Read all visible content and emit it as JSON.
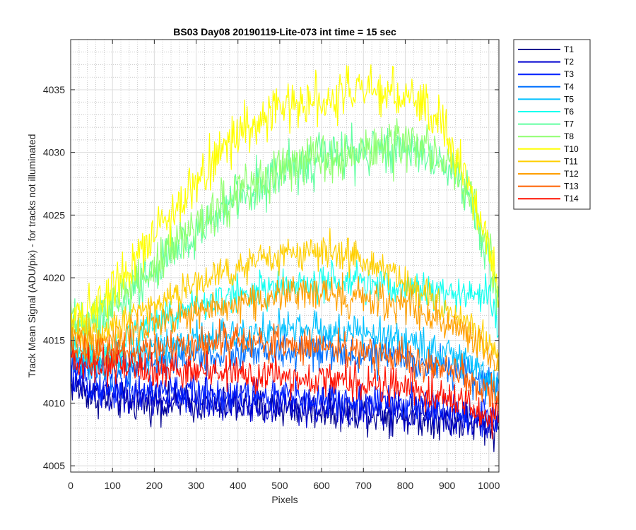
{
  "chart_data": {
    "type": "line",
    "title": "BS03 Day08 20190119-Lite-073 int time = 15 sec",
    "xlabel": "Pixels",
    "ylabel": "Track Mean Signal (ADU/pix) - for tracks not illuminated",
    "xlim": [
      0,
      1024
    ],
    "ylim": [
      4004.5,
      4039
    ],
    "x_ticks": [
      "0",
      "100",
      "200",
      "300",
      "400",
      "500",
      "600",
      "700",
      "800",
      "900",
      "1000"
    ],
    "y_ticks": [
      "4005",
      "4010",
      "4015",
      "4020",
      "4025",
      "4030",
      "4035"
    ],
    "grid": "major and minor",
    "legend_position": "outside right",
    "x": [
      0,
      50,
      100,
      150,
      200,
      250,
      300,
      350,
      400,
      450,
      500,
      550,
      600,
      650,
      700,
      750,
      800,
      850,
      900,
      950,
      1000,
      1024
    ],
    "series": [
      {
        "name": "T1",
        "color": "#00008f",
        "values": [
          4011.5,
          4010.5,
          4010.2,
          4010.0,
          4010.0,
          4010.0,
          4009.9,
          4009.8,
          4009.8,
          4009.7,
          4009.6,
          4009.5,
          4009.4,
          4009.3,
          4009.2,
          4009.1,
          4009.0,
          4008.8,
          4008.6,
          4008.4,
          4008.0,
          4008.0
        ]
      },
      {
        "name": "T2",
        "color": "#0000cf",
        "values": [
          4012.0,
          4010.8,
          4010.5,
          4010.3,
          4010.3,
          4010.2,
          4010.1,
          4010.0,
          4010.0,
          4009.9,
          4009.8,
          4009.7,
          4009.6,
          4009.5,
          4009.4,
          4009.3,
          4009.2,
          4009.0,
          4008.8,
          4008.6,
          4008.2,
          4008.3
        ]
      },
      {
        "name": "T3",
        "color": "#0020ff",
        "values": [
          4012.5,
          4011.5,
          4011.2,
          4011.0,
          4011.0,
          4010.9,
          4010.8,
          4010.7,
          4010.7,
          4010.6,
          4010.5,
          4010.4,
          4010.3,
          4010.2,
          4010.1,
          4010.0,
          4009.9,
          4009.7,
          4009.5,
          4009.3,
          4009.0,
          4009.0
        ]
      },
      {
        "name": "T4",
        "color": "#0070ff",
        "values": [
          4013.5,
          4012.5,
          4012.5,
          4013.0,
          4013.2,
          4013.5,
          4013.7,
          4013.8,
          4013.9,
          4014.0,
          4014.0,
          4014.0,
          4014.0,
          4013.9,
          4013.8,
          4013.7,
          4013.5,
          4013.2,
          4012.8,
          4012.3,
          4011.5,
          4011.0
        ]
      },
      {
        "name": "T5",
        "color": "#00c0ff",
        "values": [
          4014.0,
          4013.0,
          4013.2,
          4013.8,
          4014.3,
          4014.8,
          4015.2,
          4015.5,
          4015.7,
          4015.8,
          4015.9,
          4015.9,
          4015.8,
          4015.7,
          4015.5,
          4015.3,
          4015.0,
          4014.6,
          4014.0,
          4013.2,
          4012.0,
          4011.0
        ]
      },
      {
        "name": "T6",
        "color": "#10ffef",
        "values": [
          4014.5,
          4013.8,
          4014.5,
          4015.5,
          4016.5,
          4017.2,
          4017.8,
          4018.3,
          4018.7,
          4019.0,
          4019.2,
          4019.4,
          4019.5,
          4019.5,
          4019.5,
          4019.3,
          4019.2,
          4019.0,
          4018.8,
          4018.5,
          4018.8,
          4015.5
        ]
      },
      {
        "name": "T7",
        "color": "#60ffa0",
        "values": [
          4016.0,
          4016.0,
          4017.5,
          4019.0,
          4020.5,
          4022.0,
          4023.5,
          4025.0,
          4026.5,
          4027.5,
          4028.3,
          4029.0,
          4029.5,
          4029.8,
          4030.0,
          4030.2,
          4030.3,
          4030.0,
          4029.0,
          4026.5,
          4021.5,
          4018.5
        ]
      },
      {
        "name": "T8",
        "color": "#90ff70",
        "values": [
          4016.5,
          4016.5,
          4018.0,
          4019.5,
          4021.0,
          4022.5,
          4024.0,
          4025.5,
          4026.8,
          4027.8,
          4028.6,
          4029.2,
          4029.7,
          4030.0,
          4030.2,
          4030.4,
          4030.5,
          4030.2,
          4029.3,
          4027.0,
          4022.0,
          4019.0
        ]
      },
      {
        "name": "T10",
        "color": "#ffff00",
        "values": [
          4017.0,
          4017.5,
          4019.5,
          4021.5,
          4023.5,
          4025.5,
          4027.5,
          4029.5,
          4031.5,
          4032.5,
          4033.5,
          4034.0,
          4034.5,
          4034.8,
          4035.0,
          4034.8,
          4034.5,
          4033.5,
          4031.5,
          4028.0,
          4022.5,
          4019.0
        ]
      },
      {
        "name": "T11",
        "color": "#ffcf00",
        "values": [
          4016.0,
          4015.5,
          4016.3,
          4017.2,
          4018.0,
          4018.8,
          4019.5,
          4020.2,
          4020.8,
          4021.3,
          4021.7,
          4022.0,
          4022.2,
          4022.0,
          4021.5,
          4020.8,
          4019.8,
          4018.7,
          4017.5,
          4016.2,
          4014.5,
          4013.5
        ]
      },
      {
        "name": "T12",
        "color": "#ff9f00",
        "values": [
          4015.5,
          4014.8,
          4015.3,
          4015.8,
          4016.3,
          4016.8,
          4017.2,
          4017.6,
          4018.0,
          4018.3,
          4018.5,
          4018.7,
          4018.8,
          4018.7,
          4018.5,
          4018.2,
          4017.8,
          4017.2,
          4016.5,
          4015.5,
          4014.0,
          4013.0
        ]
      },
      {
        "name": "T13",
        "color": "#ff6000",
        "values": [
          4014.5,
          4013.8,
          4014.0,
          4014.2,
          4014.4,
          4014.6,
          4014.7,
          4014.8,
          4014.8,
          4014.8,
          4014.7,
          4014.6,
          4014.5,
          4014.3,
          4014.1,
          4013.9,
          4013.6,
          4013.2,
          4012.7,
          4012.0,
          4010.8,
          4010.0
        ]
      },
      {
        "name": "T14",
        "color": "#ff1000",
        "values": [
          4013.5,
          4012.8,
          4012.8,
          4012.8,
          4012.7,
          4012.6,
          4012.5,
          4012.4,
          4012.3,
          4012.2,
          4012.1,
          4012.0,
          4011.9,
          4011.8,
          4011.6,
          4011.4,
          4011.2,
          4010.8,
          4010.4,
          4009.8,
          4009.0,
          4008.8
        ]
      }
    ]
  }
}
